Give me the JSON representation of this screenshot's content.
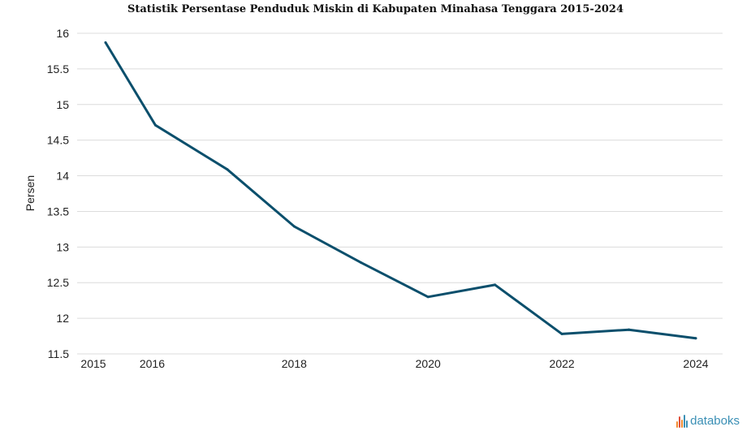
{
  "chart_data": {
    "type": "line",
    "title": "Statistik Persentase Penduduk Miskin di Kabupaten Minahasa Tenggara 2015-2024",
    "xlabel": "",
    "ylabel": "Persen",
    "x": [
      2015,
      2016,
      2017,
      2018,
      2019,
      2020,
      2021,
      2022,
      2023,
      2024
    ],
    "series": [
      {
        "name": "Persentase Penduduk Miskin",
        "values": [
          15.87,
          14.71,
          14.09,
          13.29,
          12.78,
          12.3,
          12.47,
          11.78,
          11.84,
          11.72
        ]
      }
    ],
    "x_ticks": [
      "2015",
      "2016",
      "2018",
      "2020",
      "2022",
      "2024"
    ],
    "y_ticks": [
      "11.5",
      "12",
      "12.5",
      "13",
      "13.5",
      "14",
      "14.5",
      "15",
      "15.5",
      "16"
    ],
    "ylim": [
      11.5,
      16
    ],
    "grid": true,
    "line_color": "#0b4f6c"
  },
  "brand": {
    "name": "databoks"
  }
}
